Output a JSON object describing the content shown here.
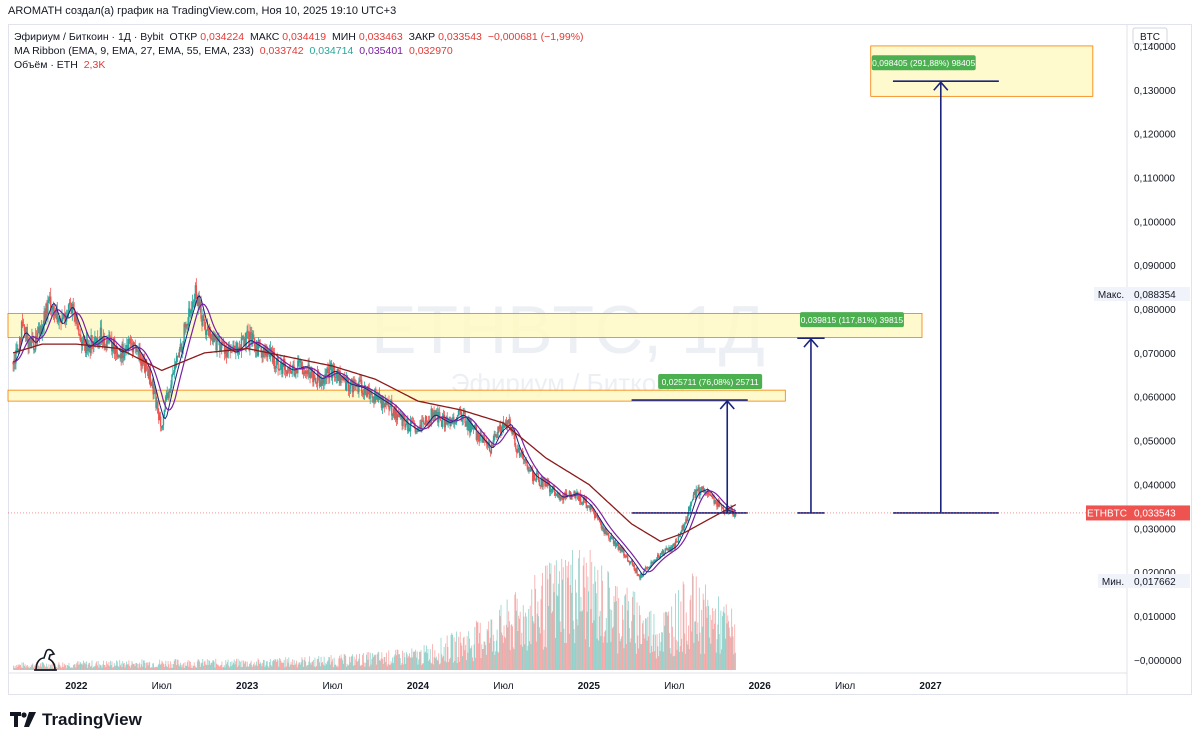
{
  "header": {
    "published": "AROMATH создал(а) график на TradingView.com, Ноя 10, 2025 19:10 UTC+3"
  },
  "legend": {
    "symbol": "Эфириум / Биткоин · 1Д · Bybit",
    "open_label": "ОТКР",
    "open": "0,034224",
    "high_label": "МАКС",
    "high": "0,034419",
    "low_label": "МИН",
    "low": "0,033463",
    "close_label": "ЗАКР",
    "close": "0,033543",
    "change": "−0,000681 (−1,99%)",
    "ma_label": "MA Ribbon (EMA, 9, EMA, 27, EMA, 55, EMA, 233)",
    "ma_values": [
      "0,033742",
      "0,034714",
      "0,035401",
      "0,032970"
    ],
    "volume_label": "Объём · ETH",
    "volume_value": "2,3K"
  },
  "watermark": {
    "symbol": "ETHBTC, 1Д",
    "name": "Эфириум / Биткоин"
  },
  "currency_badge": "BTC",
  "price_labels": {
    "max_label": "Макс.",
    "max_value": "0,088354",
    "min_label": "Мин.",
    "min_value": "0,017662",
    "current_symbol": "ETHBTC",
    "current_value": "0,033543"
  },
  "annotations": [
    {
      "text": "0,025711 (76,08%) 25711",
      "target": 0.05925
    },
    {
      "text": "0,039815 (117,81%) 39815",
      "target": 0.07336
    },
    {
      "text": "0,098405 (291,88%) 98405",
      "target": 0.13195
    }
  ],
  "footer": {
    "logo_text": "TradingView"
  },
  "colors": {
    "candle_up": "#26a69a",
    "candle_down": "#ef5350",
    "ema9": "#1a237e",
    "ema27": "#7b1fa2",
    "ema55": "#8b1a1a",
    "zone_fill": "#fff9c4",
    "zone_border": "#f57c00",
    "arrow": "#1a237e",
    "label_bg": "#4caf50"
  },
  "chart_data": {
    "type": "candlestick",
    "y_ticks": [
      "0,140000",
      "0,130000",
      "0,120000",
      "0,110000",
      "0,100000",
      "0,090000",
      "0,080000",
      "0,070000",
      "0,060000",
      "0,050000",
      "0,040000",
      "0,030000",
      "0,020000",
      "0,010000",
      "−0,000000"
    ],
    "y_values": [
      0.14,
      0.13,
      0.12,
      0.11,
      0.1,
      0.09,
      0.08,
      0.07,
      0.06,
      0.05,
      0.04,
      0.03,
      0.02,
      0.01,
      0.0
    ],
    "ylim": [
      -0.003,
      0.145
    ],
    "x_ticks": [
      "2022",
      "Июл",
      "2023",
      "Июл",
      "2024",
      "Июл",
      "2025",
      "Июл",
      "2026",
      "Июл",
      "2027"
    ],
    "x_tick_years": [
      2022.0,
      2022.5,
      2023.0,
      2023.5,
      2024.0,
      2024.5,
      2025.0,
      2025.5,
      2026.0,
      2026.5,
      2027.0
    ],
    "xlim": [
      2021.6,
      2028.15
    ],
    "price_path": [
      [
        2021.63,
        0.068
      ],
      [
        2021.68,
        0.075
      ],
      [
        2021.75,
        0.072
      ],
      [
        2021.85,
        0.082
      ],
      [
        2021.9,
        0.076
      ],
      [
        2021.96,
        0.081
      ],
      [
        2022.05,
        0.071
      ],
      [
        2022.15,
        0.074
      ],
      [
        2022.25,
        0.07
      ],
      [
        2022.33,
        0.072
      ],
      [
        2022.42,
        0.066
      ],
      [
        2022.47,
        0.058
      ],
      [
        2022.5,
        0.054
      ],
      [
        2022.56,
        0.064
      ],
      [
        2022.64,
        0.076
      ],
      [
        2022.7,
        0.084
      ],
      [
        2022.75,
        0.076
      ],
      [
        2022.83,
        0.072
      ],
      [
        2022.92,
        0.07
      ],
      [
        2023.0,
        0.073
      ],
      [
        2023.08,
        0.071
      ],
      [
        2023.17,
        0.068
      ],
      [
        2023.25,
        0.066
      ],
      [
        2023.33,
        0.067
      ],
      [
        2023.42,
        0.064
      ],
      [
        2023.5,
        0.066
      ],
      [
        2023.58,
        0.063
      ],
      [
        2023.67,
        0.062
      ],
      [
        2023.75,
        0.06
      ],
      [
        2023.83,
        0.058
      ],
      [
        2023.92,
        0.054
      ],
      [
        2024.0,
        0.052
      ],
      [
        2024.08,
        0.056
      ],
      [
        2024.17,
        0.054
      ],
      [
        2024.25,
        0.056
      ],
      [
        2024.33,
        0.052
      ],
      [
        2024.42,
        0.048
      ],
      [
        2024.47,
        0.052
      ],
      [
        2024.53,
        0.054
      ],
      [
        2024.58,
        0.048
      ],
      [
        2024.67,
        0.042
      ],
      [
        2024.75,
        0.04
      ],
      [
        2024.83,
        0.037
      ],
      [
        2024.92,
        0.038
      ],
      [
        2025.0,
        0.035
      ],
      [
        2025.08,
        0.03
      ],
      [
        2025.17,
        0.026
      ],
      [
        2025.25,
        0.022
      ],
      [
        2025.3,
        0.019
      ],
      [
        2025.36,
        0.022
      ],
      [
        2025.42,
        0.024
      ],
      [
        2025.5,
        0.026
      ],
      [
        2025.56,
        0.031
      ],
      [
        2025.62,
        0.038
      ],
      [
        2025.68,
        0.039
      ],
      [
        2025.74,
        0.036
      ],
      [
        2025.8,
        0.034
      ],
      [
        2025.86,
        0.0335
      ]
    ],
    "ema55_path": [
      [
        2021.63,
        0.07
      ],
      [
        2021.8,
        0.072
      ],
      [
        2022.0,
        0.072
      ],
      [
        2022.25,
        0.071
      ],
      [
        2022.5,
        0.066
      ],
      [
        2022.75,
        0.07
      ],
      [
        2023.0,
        0.071
      ],
      [
        2023.25,
        0.069
      ],
      [
        2023.5,
        0.067
      ],
      [
        2023.75,
        0.064
      ],
      [
        2024.0,
        0.059
      ],
      [
        2024.25,
        0.057
      ],
      [
        2024.5,
        0.054
      ],
      [
        2024.75,
        0.046
      ],
      [
        2025.0,
        0.04
      ],
      [
        2025.25,
        0.031
      ],
      [
        2025.42,
        0.027
      ],
      [
        2025.56,
        0.029
      ],
      [
        2025.7,
        0.032
      ],
      [
        2025.86,
        0.0354
      ]
    ],
    "volume_path": [
      [
        2021.63,
        0.2
      ],
      [
        2022.0,
        0.25
      ],
      [
        2022.5,
        0.3
      ],
      [
        2023.0,
        0.3
      ],
      [
        2023.5,
        0.4
      ],
      [
        2024.0,
        0.6
      ],
      [
        2024.3,
        1.2
      ],
      [
        2024.5,
        1.8
      ],
      [
        2024.7,
        2.6
      ],
      [
        2024.9,
        3.6
      ],
      [
        2025.0,
        3.2
      ],
      [
        2025.2,
        2.4
      ],
      [
        2025.4,
        1.6
      ],
      [
        2025.6,
        2.6
      ],
      [
        2025.75,
        2.0
      ],
      [
        2025.86,
        1.6
      ]
    ],
    "volume_max": 4.6,
    "zones": [
      {
        "x1": 2021.6,
        "x2": 2026.15,
        "y1": 0.059,
        "y2": 0.0615
      },
      {
        "x1": 2021.6,
        "x2": 2026.95,
        "y1": 0.0735,
        "y2": 0.079
      },
      {
        "x1": 2026.65,
        "x2": 2027.95,
        "y1": 0.1285,
        "y2": 0.14
      }
    ],
    "baseline": 0.0335,
    "targets": [
      {
        "x1": 2025.25,
        "x2": 2025.93,
        "arrow_x": 2025.81,
        "y": 0.05925,
        "label_x": 2025.71
      },
      {
        "x1": 2026.22,
        "x2": 2026.38,
        "arrow_x": 2026.3,
        "y": 0.07336,
        "label_x": 2026.54
      },
      {
        "x1": 2026.78,
        "x2": 2027.4,
        "arrow_x": 2027.06,
        "y": 0.13195,
        "label_x": 2026.96
      }
    ]
  }
}
